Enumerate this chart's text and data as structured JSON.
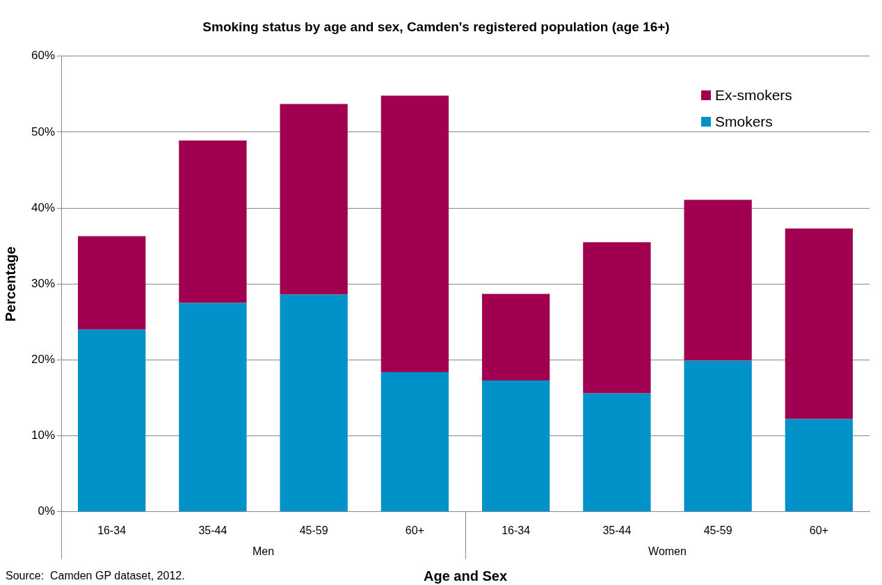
{
  "chart_data": {
    "type": "bar",
    "title": "Smoking status by age and sex, Camden's registered population (age 16+)",
    "xlabel": "Age and Sex",
    "ylabel": "Percentage",
    "categories": [
      "16-34",
      "35-44",
      "45-59",
      "60+",
      "16-34",
      "35-44",
      "45-59",
      "60+"
    ],
    "stacked": true,
    "series": [
      {
        "name": "Smokers",
        "color": "#0092c8",
        "values": [
          24.0,
          27.5,
          28.6,
          18.4,
          17.3,
          15.6,
          19.9,
          12.2
        ]
      },
      {
        "name": "Ex-smokers",
        "color": "#a0004f",
        "values": [
          12.3,
          21.4,
          25.1,
          36.4,
          11.4,
          19.9,
          21.2,
          25.1
        ]
      }
    ],
    "ylim": [
      0,
      60
    ],
    "yticks": [
      {
        "value": 0,
        "label": "0%"
      },
      {
        "value": 10,
        "label": "10%"
      },
      {
        "value": 20,
        "label": "20%"
      },
      {
        "value": 30,
        "label": "30%"
      },
      {
        "value": 40,
        "label": "40%"
      },
      {
        "value": 50,
        "label": "50%"
      },
      {
        "value": 60,
        "label": "60%"
      }
    ],
    "grid": "y",
    "legend": "top right",
    "annotations": [
      "Men",
      "Women",
      "Source:  Camden GP dataset, 2012."
    ]
  }
}
